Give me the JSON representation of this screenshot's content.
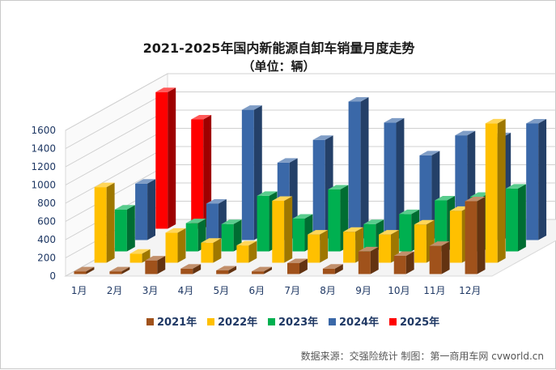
{
  "chart_data": {
    "type": "bar",
    "title": "2021-2025年国内新能源自卸车销量月度走势",
    "subtitle": "（单位：辆）",
    "categories": [
      "1月",
      "2月",
      "3月",
      "4月",
      "5月",
      "6月",
      "7月",
      "8月",
      "9月",
      "10月",
      "11月",
      "12月"
    ],
    "yticks": [
      "0",
      "200",
      "400",
      "600",
      "800",
      "1000",
      "1200",
      "1400",
      "1600"
    ],
    "ylim": [
      0,
      1600
    ],
    "grid": true,
    "legend_position": "bottom",
    "series": [
      {
        "name": "2021年",
        "color": "#a0521b",
        "values": [
          30,
          30,
          150,
          60,
          40,
          30,
          120,
          60,
          250,
          200,
          310,
          800
        ]
      },
      {
        "name": "2022年",
        "color": "#ffc000",
        "values": [
          830,
          100,
          330,
          220,
          190,
          680,
          310,
          340,
          310,
          420,
          570,
          1530
        ]
      },
      {
        "name": "2023年",
        "color": "#00b050",
        "values": [
          460,
          0,
          310,
          300,
          610,
          360,
          680,
          300,
          410,
          560,
          600,
          690
        ]
      },
      {
        "name": "2024年",
        "color": "#3a68a8",
        "values": [
          620,
          0,
          400,
          1430,
          850,
          1100,
          1520,
          1290,
          930,
          1150,
          1130,
          1280
        ]
      },
      {
        "name": "2025年",
        "color": "#ff0000",
        "values": [
          1500,
          1200,
          0,
          0,
          0,
          0,
          0,
          0,
          0,
          0,
          0,
          0
        ]
      }
    ]
  },
  "source": "数据来源：交强险统计  制图：第一商用车网 cvworld.cn"
}
